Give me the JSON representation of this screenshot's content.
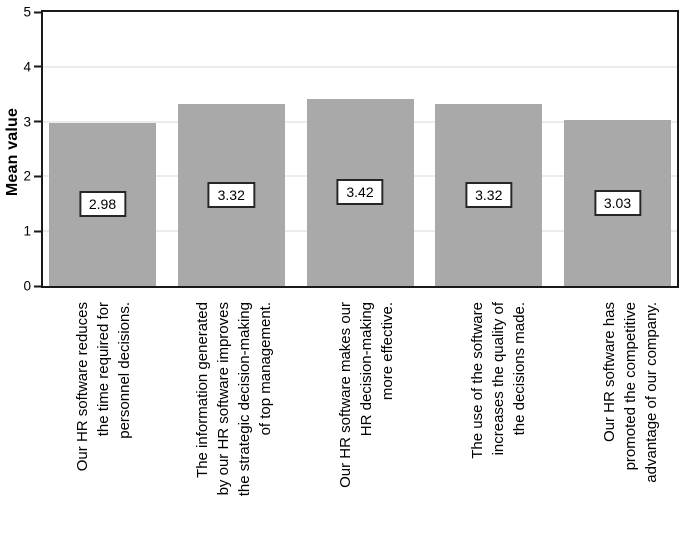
{
  "chart_data": {
    "type": "bar",
    "title": "",
    "ylabel": "Mean value",
    "xlabel": "",
    "ylim": [
      0,
      5
    ],
    "yticks": [
      0,
      1,
      2,
      3,
      4,
      5
    ],
    "grid_values": [
      1,
      2,
      3,
      4
    ],
    "grid": "horizontal, behind bars",
    "legend_position": "none",
    "categories": [
      "Our HR software reduces\nthe time required for\npersonnel decisions.",
      "The information generated\nby our HR software improves\nthe strategic decision-making\nof top management.",
      "Our HR software makes our\nHR decision-making\nmore effective.",
      "The use of the software\nincreases the quality of\nthe decisions made.",
      "Our HR software has\npromoted the competitive\nadvantage of our company."
    ],
    "values": [
      2.98,
      3.32,
      3.42,
      3.32,
      3.03
    ],
    "value_labels": [
      "2.98",
      "3.32",
      "3.42",
      "3.32",
      "3.03"
    ],
    "half_values": [
      1.49,
      1.66,
      1.71,
      1.66,
      1.515
    ],
    "colors": {
      "bar": "#a9a9a9",
      "gridline": "#d9d9d9",
      "axis": "#1a1a1a",
      "value_box_border": "#262626",
      "background": "#ffffff",
      "text": "#000000"
    }
  }
}
